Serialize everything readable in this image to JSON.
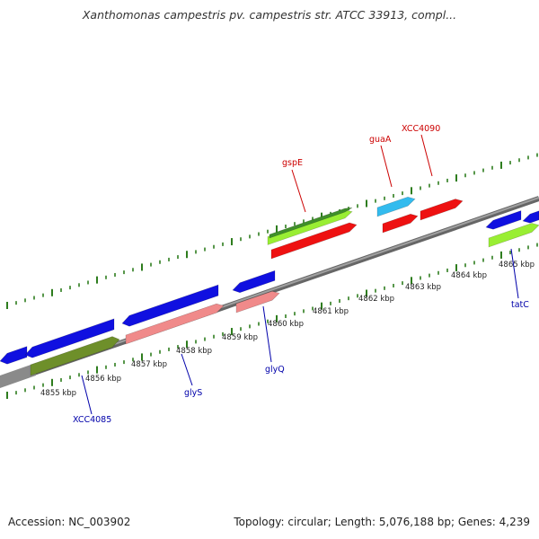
{
  "title": "Xanthomonas campestris pv. campestris str. ATCC 33913, compl...",
  "footer": {
    "accession": "Accession: NC_003902",
    "summary": "Topology: circular; Length: 5,076,188 bp; Genes: 4,239"
  },
  "colors": {
    "backbone": "#808080",
    "tick": "#2e7d1e",
    "label_red": "#cc0000",
    "label_blue": "#0000aa",
    "blue_gene": "#1010e0",
    "red_gene": "#ee1111",
    "pink_gene": "#f08a8a",
    "lime_gene": "#99ee33",
    "olive_gene": "#6e8f2a",
    "cyan_gene": "#33bbee"
  },
  "scale_labels": [
    "4855 kbp",
    "4856 kbp",
    "4857 kbp",
    "4858 kbp",
    "4859 kbp",
    "4860 kbp",
    "4861 kbp",
    "4862 kbp",
    "4863 kbp",
    "4864 kbp",
    "4865 kbp"
  ],
  "gene_labels": {
    "gspE": "gspE",
    "guaA": "guaA",
    "XCC4090": "XCC4090",
    "XCC4085": "XCC4085",
    "glyS": "glyS",
    "glyQ": "glyQ",
    "tatC": "tatC"
  }
}
